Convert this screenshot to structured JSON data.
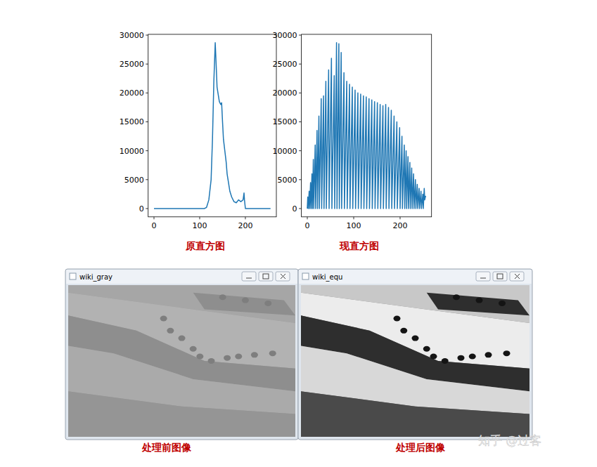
{
  "chart_data": [
    {
      "type": "line",
      "title": "原直方图",
      "color": "#1f77b4",
      "x": [
        0,
        50,
        100,
        110,
        115,
        120,
        125,
        128,
        131,
        134,
        136,
        138,
        140,
        143,
        146,
        148,
        150,
        152,
        155,
        158,
        160,
        163,
        166,
        170,
        175,
        180,
        185,
        190,
        195,
        197,
        198,
        200,
        205,
        255
      ],
      "values": [
        0,
        0,
        0,
        0,
        200,
        1500,
        5000,
        12000,
        22000,
        28700,
        25000,
        21000,
        20000,
        18500,
        18000,
        18300,
        15000,
        12000,
        10000,
        8000,
        6000,
        4500,
        3000,
        2000,
        1200,
        1000,
        1500,
        1200,
        1500,
        2700,
        1500,
        0,
        0,
        0
      ],
      "xlim": [
        -12.75,
        267.75
      ],
      "xticks": [
        0,
        100,
        200
      ],
      "ylim": [
        -1435,
        30135
      ],
      "yticks": [
        0,
        5000,
        10000,
        15000,
        20000,
        25000,
        30000
      ],
      "grid": false
    },
    {
      "type": "line",
      "title": "现直方图",
      "color": "#1f77b4",
      "x": [
        0,
        1,
        2,
        4,
        5,
        7,
        8,
        10,
        11,
        13,
        14,
        17,
        18,
        21,
        22,
        25,
        26,
        30,
        31,
        35,
        36,
        40,
        41,
        46,
        47,
        52,
        53,
        58,
        59,
        63,
        64,
        68,
        69,
        73,
        74,
        79,
        80,
        85,
        86,
        91,
        92,
        97,
        98,
        103,
        104,
        109,
        110,
        115,
        116,
        121,
        122,
        127,
        128,
        133,
        134,
        139,
        140,
        145,
        146,
        151,
        152,
        157,
        158,
        163,
        164,
        169,
        170,
        175,
        176,
        181,
        182,
        187,
        188,
        193,
        194,
        199,
        200,
        204,
        205,
        209,
        210,
        213,
        214,
        217,
        218,
        221,
        222,
        225,
        226,
        229,
        230,
        233,
        234,
        237,
        238,
        241,
        242,
        245,
        246,
        249,
        250,
        252,
        253,
        255
      ],
      "values": [
        0,
        2000,
        0,
        3000,
        0,
        4500,
        0,
        6000,
        0,
        8500,
        0,
        11000,
        0,
        13500,
        0,
        16000,
        0,
        19000,
        0,
        19500,
        0,
        22000,
        0,
        24000,
        0,
        26000,
        0,
        23000,
        0,
        28700,
        0,
        28500,
        0,
        27000,
        0,
        23500,
        0,
        22000,
        0,
        21500,
        0,
        21000,
        0,
        20500,
        0,
        20000,
        0,
        19800,
        0,
        19500,
        0,
        19300,
        0,
        19000,
        0,
        18800,
        0,
        18500,
        0,
        18300,
        0,
        18000,
        0,
        17800,
        0,
        18000,
        0,
        17500,
        0,
        17000,
        0,
        16000,
        0,
        15000,
        0,
        14000,
        0,
        12500,
        0,
        11000,
        0,
        10000,
        0,
        9000,
        0,
        8000,
        0,
        7000,
        0,
        6000,
        0,
        5000,
        0,
        4200,
        0,
        3500,
        0,
        3000,
        0,
        2500,
        0,
        3500,
        1500,
        2200
      ],
      "xlim": [
        -12.75,
        267.75
      ],
      "xticks": [
        0,
        100,
        200
      ],
      "ylim": [
        -1435,
        30135
      ],
      "yticks": [
        0,
        5000,
        10000,
        15000,
        20000,
        25000,
        30000
      ],
      "grid": false
    }
  ],
  "windows": [
    {
      "title": "wiki_gray",
      "caption": "处理前图像"
    },
    {
      "title": "wiki_equ",
      "caption": "处理后图像"
    }
  ],
  "watermark": "知乎 @过客"
}
